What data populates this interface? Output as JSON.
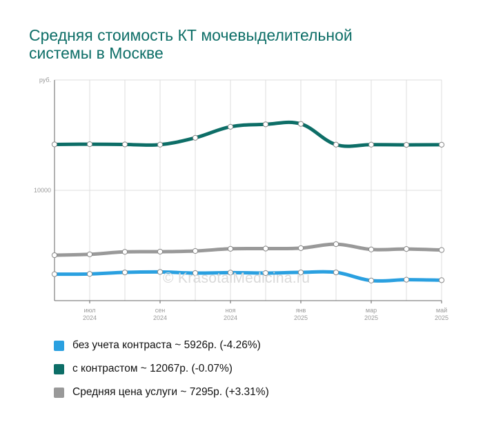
{
  "title_lines": [
    "Средняя стоимость КТ мочевыделительной",
    "системы в Москве"
  ],
  "watermark": "© KrasotaiMedicina.ru",
  "colors": {
    "title": "#0d6e67",
    "grid": "#dddddd",
    "axis": "#666666",
    "tick_text": "#999999"
  },
  "chart_data": {
    "type": "line",
    "ylabel": "руб.",
    "y_ticks": [
      {
        "value": 10000,
        "label": "10000"
      }
    ],
    "ylim": [
      5000,
      15000
    ],
    "x_ticks": [
      {
        "index": 1,
        "month": "июл",
        "year": "2024"
      },
      {
        "index": 3,
        "month": "сен",
        "year": "2024"
      },
      {
        "index": 5,
        "month": "ноя",
        "year": "2024"
      },
      {
        "index": 7,
        "month": "янв",
        "year": "2025"
      },
      {
        "index": 9,
        "month": "мар",
        "year": "2025"
      },
      {
        "index": 11,
        "month": "май",
        "year": "2025"
      }
    ],
    "x_count": 12,
    "grid": true,
    "legend_position": "bottom",
    "series": [
      {
        "name": "без учета контраста ~ 5926р. (-4.26%)",
        "color": "#2aa0e0",
        "values": [
          6200,
          6210,
          6280,
          6300,
          6250,
          6270,
          6250,
          6280,
          6280,
          5910,
          5950,
          5926
        ]
      },
      {
        "name": "с контрастом ~ 12067р. (-0.07%)",
        "color": "#0d6e67",
        "values": [
          12080,
          12090,
          12080,
          12070,
          12380,
          12880,
          12990,
          13010,
          12070,
          12070,
          12060,
          12067
        ]
      },
      {
        "name": "Средняя цена услуги ~ 7295р. (+3.31%)",
        "color": "#999999",
        "values": [
          7060,
          7100,
          7210,
          7220,
          7250,
          7350,
          7360,
          7380,
          7560,
          7320,
          7340,
          7295
        ]
      }
    ]
  }
}
